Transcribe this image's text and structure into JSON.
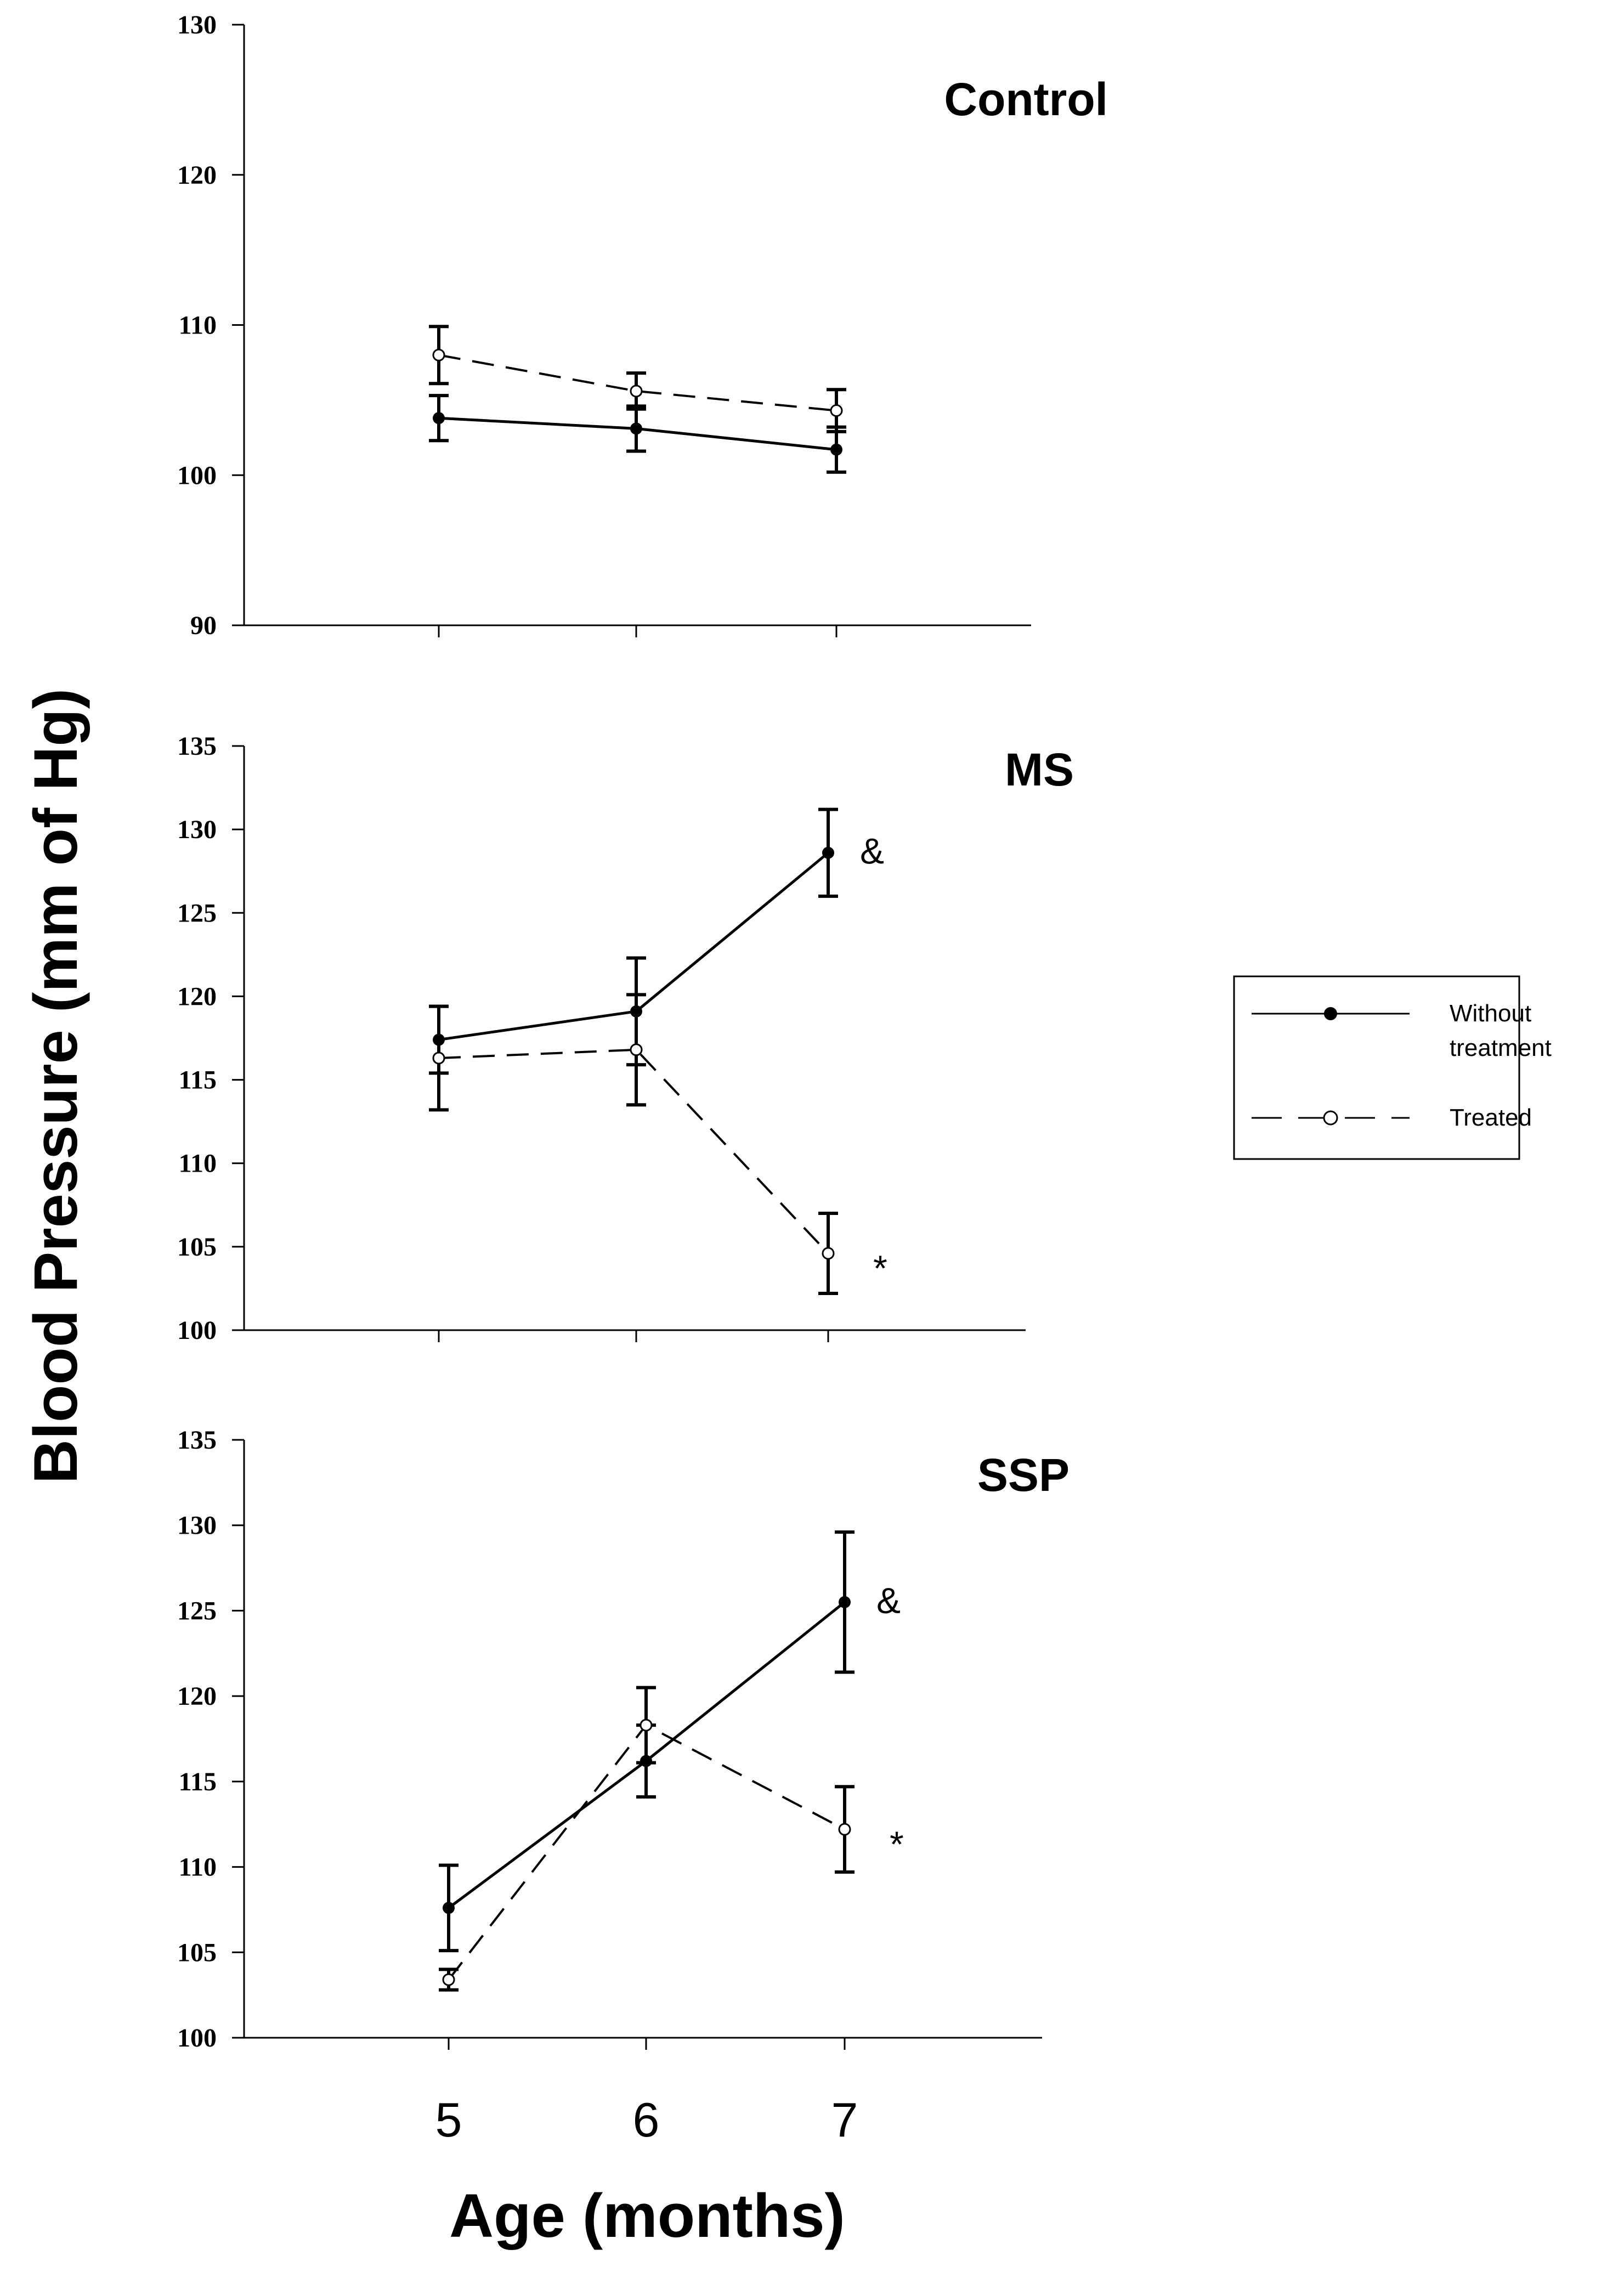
{
  "chart_data": {
    "type": "line",
    "ylabel": "Blood Pressure (mm of Hg)",
    "xlabel": "Age (months)",
    "x": [
      5,
      6,
      7
    ],
    "x_tick_labels": [
      "5",
      "6",
      "7"
    ],
    "legend": {
      "position": "right",
      "entries": [
        {
          "label_lines": [
            "Without",
            "treatment"
          ],
          "style": "solid",
          "marker": "filled-circle"
        },
        {
          "label_lines": [
            "Treated"
          ],
          "style": "dashed",
          "marker": "open-circle"
        }
      ]
    },
    "panels": [
      {
        "title": "Control",
        "ylim": [
          90,
          130
        ],
        "yticks": [
          90,
          100,
          110,
          120,
          130
        ],
        "series": [
          {
            "name": "Without treatment",
            "style": "solid",
            "values": [
              103.8,
              103.1,
              101.7
            ],
            "errors": [
              1.5,
              1.5,
              1.5
            ]
          },
          {
            "name": "Treated",
            "style": "dashed",
            "values": [
              108.0,
              105.6,
              104.3
            ],
            "errors": [
              1.9,
              1.2,
              1.4
            ]
          }
        ],
        "annotations": []
      },
      {
        "title": "MS",
        "ylim": [
          100,
          135
        ],
        "yticks": [
          100,
          105,
          110,
          115,
          120,
          125,
          130,
          135
        ],
        "series": [
          {
            "name": "Without treatment",
            "style": "solid",
            "values": [
              117.4,
              119.1,
              128.6
            ],
            "errors": [
              2.0,
              3.2,
              2.6
            ]
          },
          {
            "name": "Treated",
            "style": "dashed",
            "values": [
              116.3,
              116.8,
              104.6
            ],
            "errors": [
              3.1,
              3.3,
              2.4
            ]
          }
        ],
        "annotations": [
          {
            "text": "&",
            "series": "Without treatment",
            "x": 7
          },
          {
            "text": "*",
            "series": "Treated",
            "x": 7
          }
        ]
      },
      {
        "title": "SSP",
        "ylim": [
          100,
          135
        ],
        "yticks": [
          100,
          105,
          110,
          115,
          120,
          125,
          130,
          135
        ],
        "series": [
          {
            "name": "Without treatment",
            "style": "solid",
            "values": [
              107.6,
              116.2,
              125.5
            ],
            "errors": [
              2.5,
              2.1,
              4.1
            ]
          },
          {
            "name": "Treated",
            "style": "dashed",
            "values": [
              103.4,
              118.3,
              112.2
            ],
            "errors": [
              0.6,
              2.2,
              2.5
            ]
          }
        ],
        "annotations": [
          {
            "text": "&",
            "series": "Without treatment",
            "x": 7
          },
          {
            "text": "*",
            "series": "Treated",
            "x": 7
          }
        ]
      }
    ]
  }
}
